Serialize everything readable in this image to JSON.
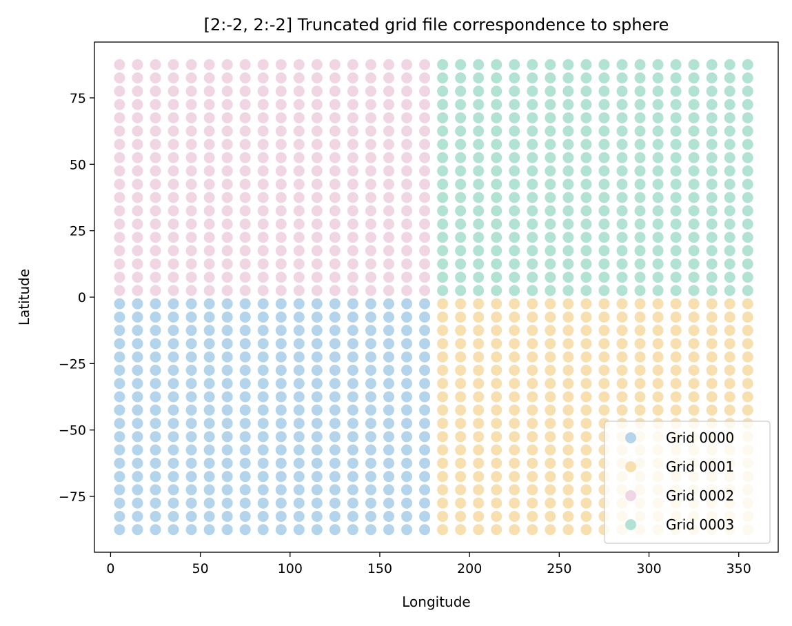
{
  "chart_data": {
    "type": "scatter",
    "title": "[2:-2, 2:-2] Truncated grid file correspondence to sphere",
    "xlabel": "Longitude",
    "ylabel": "Latitude",
    "xlim": [
      -9,
      372
    ],
    "ylim": [
      -96,
      96
    ],
    "xticks": [
      0,
      50,
      100,
      150,
      200,
      250,
      300,
      350
    ],
    "xtick_labels": [
      "0",
      "50",
      "100",
      "150",
      "200",
      "250",
      "300",
      "350"
    ],
    "yticks": [
      -75,
      -50,
      -25,
      0,
      25,
      50,
      75
    ],
    "ytick_labels": [
      "−75",
      "−50",
      "−25",
      "0",
      "25",
      "50",
      "75"
    ],
    "grid": false,
    "legend_position": "lower-right",
    "x_lo": [
      5,
      15,
      25,
      35,
      45,
      55,
      65,
      75,
      85,
      95,
      105,
      115,
      125,
      135,
      145,
      155,
      165,
      175
    ],
    "x_hi": [
      185,
      195,
      205,
      215,
      225,
      235,
      245,
      255,
      265,
      275,
      285,
      295,
      305,
      315,
      325,
      335,
      345,
      355
    ],
    "y_lo": [
      -87.5,
      -82.5,
      -77.5,
      -72.5,
      -67.5,
      -62.5,
      -57.5,
      -52.5,
      -47.5,
      -42.5,
      -37.5,
      -32.5,
      -27.5,
      -22.5,
      -17.5,
      -12.5,
      -7.5,
      -2.5
    ],
    "y_hi": [
      2.5,
      7.5,
      12.5,
      17.5,
      22.5,
      27.5,
      32.5,
      37.5,
      42.5,
      47.5,
      52.5,
      57.5,
      62.5,
      67.5,
      72.5,
      77.5,
      82.5,
      87.5
    ],
    "series": [
      {
        "name": "Grid 0000",
        "color": "#b3d4ea",
        "lon_range": "lo",
        "lat_range": "lo"
      },
      {
        "name": "Grid 0001",
        "color": "#f7dfaf",
        "lon_range": "hi",
        "lat_range": "lo"
      },
      {
        "name": "Grid 0002",
        "color": "#f0d5e3",
        "lon_range": "lo",
        "lat_range": "hi"
      },
      {
        "name": "Grid 0003",
        "color": "#b1e2d3",
        "lon_range": "hi",
        "lat_range": "hi"
      }
    ]
  }
}
